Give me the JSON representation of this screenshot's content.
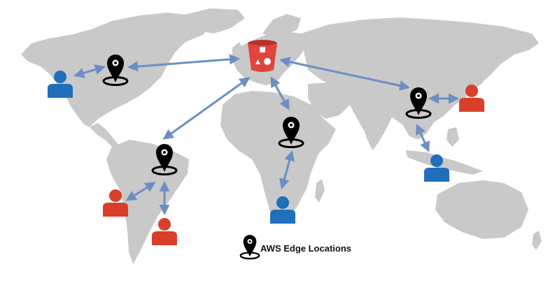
{
  "legend": {
    "label": "AWS Edge Locations"
  },
  "colors": {
    "land": "#c9c9c9",
    "arrow": "#6b8fc4",
    "user_blue": "#1f6fba",
    "user_red": "#d9402b",
    "bucket": "#e0443a",
    "pin": "#000000"
  },
  "icons": {
    "origin": "s3-bucket-icon",
    "edge": "map-pin-icon",
    "user": "user-icon"
  }
}
